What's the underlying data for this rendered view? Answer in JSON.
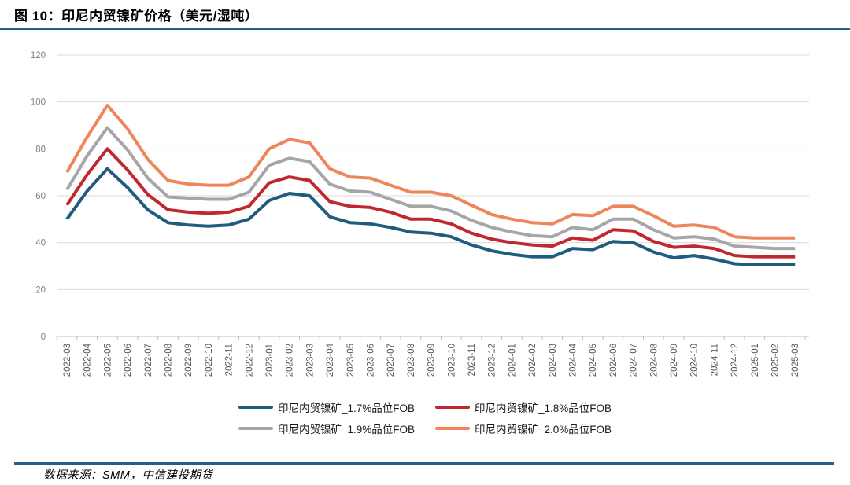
{
  "header": {
    "title": "图 10：印尼内贸镍矿价格（美元/湿吨）"
  },
  "footer": {
    "source": "数据来源：SMM，中信建投期货"
  },
  "theme": {
    "rule_color": "#235E8C",
    "grid_color": "#D9D9D9",
    "axis_color": "#BFBFBF",
    "ytick_label_color": "#7F7F7F",
    "xtick_label_color": "#595959"
  },
  "chart_data": {
    "type": "line",
    "title": "图 10：印尼内贸镍矿价格（美元/湿吨）",
    "xlabel": "",
    "ylabel": "",
    "ylim": [
      0,
      120
    ],
    "yticks": [
      0,
      20,
      40,
      60,
      80,
      100,
      120
    ],
    "grid": true,
    "legend_position": "bottom",
    "categories": [
      "2022-03",
      "2022-04",
      "2022-05",
      "2022-06",
      "2022-07",
      "2022-08",
      "2022-09",
      "2022-10",
      "2022-11",
      "2022-12",
      "2023-01",
      "2023-02",
      "2023-03",
      "2023-04",
      "2023-05",
      "2023-06",
      "2023-07",
      "2023-08",
      "2023-09",
      "2023-10",
      "2023-11",
      "2023-12",
      "2024-01",
      "2024-02",
      "2024-03",
      "2024-04",
      "2024-05",
      "2024-06",
      "2024-07",
      "2024-08",
      "2024-09",
      "2024-10",
      "2024-11",
      "2024-12",
      "2025-01",
      "2025-02",
      "2025-03"
    ],
    "series": [
      {
        "name": "印尼内贸镍矿_1.7%品位FOB",
        "color": "#1F5C7E",
        "values": [
          50,
          62,
          71.5,
          63.5,
          54,
          48.5,
          47.5,
          47,
          47.5,
          50,
          58,
          61,
          60,
          51,
          48.5,
          48,
          46.5,
          44.5,
          44,
          42.5,
          39,
          36.5,
          35,
          34,
          34,
          37.5,
          37,
          40.5,
          40,
          36,
          33.5,
          34.5,
          33,
          31,
          30.5,
          30.5,
          30.5
        ]
      },
      {
        "name": "印尼内贸镍矿_1.8%品位FOB",
        "color": "#C0282F",
        "values": [
          56,
          69,
          80,
          71,
          60.5,
          54,
          53,
          52.5,
          53,
          55.5,
          65.5,
          68,
          66.5,
          57.5,
          55.5,
          55,
          53,
          50,
          50,
          48,
          44,
          41.5,
          40,
          39,
          38.5,
          42,
          41,
          45.5,
          45,
          40.5,
          38,
          38.5,
          37.5,
          34.5,
          34,
          34,
          34
        ]
      },
      {
        "name": "印尼内贸镍矿_1.9%品位FOB",
        "color": "#A6A6A6",
        "values": [
          62.5,
          77,
          89,
          79.5,
          67.5,
          59.5,
          59,
          58.5,
          58.5,
          61.5,
          73,
          76,
          74.5,
          65,
          62,
          61.5,
          58.5,
          55.5,
          55.5,
          53.5,
          49.5,
          46.5,
          44.5,
          43,
          42.5,
          46.5,
          45.5,
          50,
          50,
          45.5,
          42,
          42.5,
          41.5,
          38.5,
          38,
          37.5,
          37.5
        ]
      },
      {
        "name": "印尼内贸镍矿_2.0%品位FOB",
        "color": "#EF855A",
        "values": [
          70,
          85,
          98.5,
          88.5,
          75.5,
          66.5,
          65,
          64.5,
          64.5,
          68,
          80,
          84,
          82.5,
          71.5,
          68,
          67.5,
          64.5,
          61.5,
          61.5,
          60,
          56,
          52,
          50,
          48.5,
          48,
          52,
          51.5,
          55.5,
          55.5,
          51.5,
          47,
          47.5,
          46.5,
          42.5,
          42,
          42,
          42
        ]
      }
    ]
  }
}
